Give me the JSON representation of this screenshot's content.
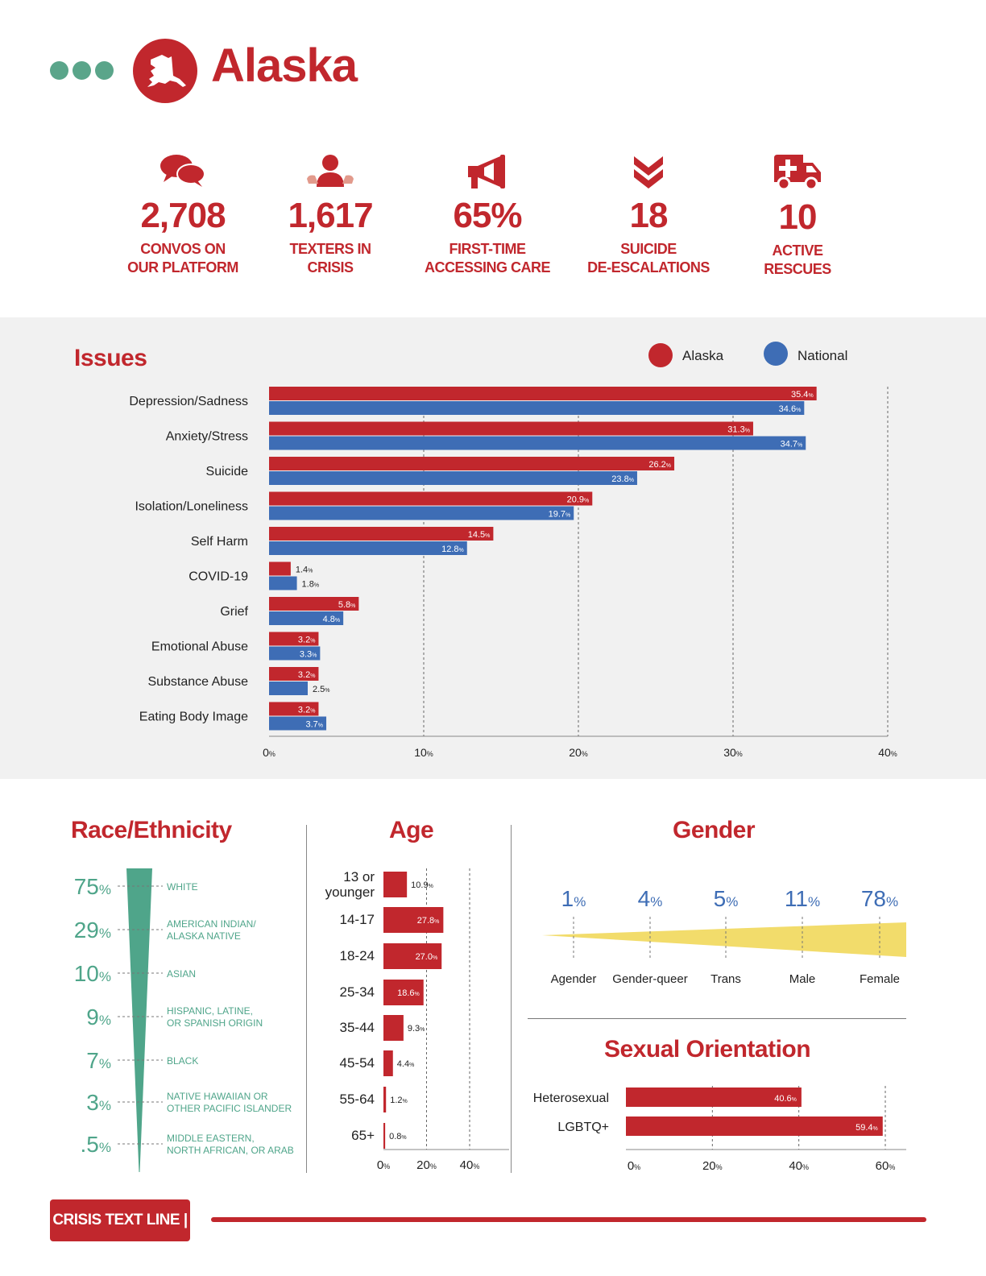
{
  "header": {
    "state": "Alaska"
  },
  "stats": [
    {
      "icon": "chat-bubbles-icon",
      "value": "2,708",
      "label_line1": "CONVOS ON",
      "label_line2": "OUR PLATFORM"
    },
    {
      "icon": "person-hands-icon",
      "value": "1,617",
      "label_line1": "TEXTERS IN",
      "label_line2": "CRISIS"
    },
    {
      "icon": "megaphone-icon",
      "value": "65%",
      "label_line1": "FIRST-TIME",
      "label_line2": "ACCESSING CARE"
    },
    {
      "icon": "double-chevron-down-icon",
      "value": "18",
      "label_line1": "SUICIDE",
      "label_line2": "DE-ESCALATIONS"
    },
    {
      "icon": "ambulance-icon",
      "value": "10",
      "label_line1": "ACTIVE",
      "label_line2": "RESCUES"
    }
  ],
  "colors": {
    "red": "#c1272d",
    "blue": "#3e6db5",
    "green": "#4fa58a",
    "yellow": "#f2dc6b",
    "gender_blue": "#3e6db5"
  },
  "legend": {
    "alaska": "Alaska",
    "national": "National"
  },
  "footer": {
    "logo": "CRISIS TEXT LINE |"
  },
  "chart_data": [
    {
      "type": "bar",
      "title": "Issues",
      "orientation": "horizontal",
      "categories": [
        "Depression/Sadness",
        "Anxiety/Stress",
        "Suicide",
        "Isolation/Loneliness",
        "Self Harm",
        "COVID-19",
        "Grief",
        "Emotional Abuse",
        "Substance Abuse",
        "Eating Body Image"
      ],
      "series": [
        {
          "name": "Alaska",
          "values": [
            35.4,
            31.3,
            26.2,
            20.9,
            14.5,
            1.4,
            5.8,
            3.2,
            3.2,
            3.2
          ]
        },
        {
          "name": "National",
          "values": [
            34.6,
            34.7,
            23.8,
            19.7,
            12.8,
            1.8,
            4.8,
            3.3,
            2.5,
            3.7
          ]
        }
      ],
      "xlim": [
        0,
        40
      ],
      "xticks": [
        0,
        10,
        20,
        30,
        40
      ],
      "unit": "%",
      "legend_position": "top-right"
    },
    {
      "type": "bar",
      "title": "Race/Ethnicity",
      "categories": [
        "WHITE",
        "AMERICAN INDIAN/ ALASKA NATIVE",
        "ASIAN",
        "HISPANIC, LATINE, OR SPANISH ORIGIN",
        "BLACK",
        "NATIVE HAWAIIAN OR OTHER PACIFIC ISLANDER",
        "MIDDLE EASTERN, NORTH AFRICAN, OR ARAB"
      ],
      "category_lines": [
        [
          "WHITE"
        ],
        [
          "AMERICAN INDIAN/",
          "ALASKA NATIVE"
        ],
        [
          "ASIAN"
        ],
        [
          "HISPANIC, LATINE,",
          "OR SPANISH ORIGIN"
        ],
        [
          "BLACK"
        ],
        [
          "NATIVE HAWAIIAN OR",
          "OTHER PACIFIC ISLANDER"
        ],
        [
          "MIDDLE EASTERN,",
          "NORTH AFRICAN, OR ARAB"
        ]
      ],
      "values": [
        75,
        29,
        10,
        9,
        7,
        3,
        0.5
      ],
      "value_labels": [
        "75",
        "29",
        "10",
        "9",
        "7",
        "3",
        ".5"
      ],
      "unit": "%"
    },
    {
      "type": "bar",
      "title": "Age",
      "orientation": "horizontal",
      "categories": [
        "13 or younger",
        "14-17",
        "18-24",
        "25-34",
        "35-44",
        "45-54",
        "55-64",
        "65+"
      ],
      "category_lines": [
        [
          "13 or",
          "younger"
        ],
        [
          "14-17"
        ],
        [
          "18-24"
        ],
        [
          "25-34"
        ],
        [
          "35-44"
        ],
        [
          "45-54"
        ],
        [
          "55-64"
        ],
        [
          "65+"
        ]
      ],
      "values": [
        10.9,
        27.8,
        27.0,
        18.6,
        9.3,
        4.4,
        1.2,
        0.8
      ],
      "xlim": [
        0,
        40
      ],
      "xticks": [
        0,
        20,
        40
      ],
      "unit": "%"
    },
    {
      "type": "area",
      "title": "Gender",
      "categories": [
        "Agender",
        "Gender-queer",
        "Trans",
        "Male",
        "Female"
      ],
      "values": [
        1,
        4,
        5,
        11,
        78
      ],
      "unit": "%"
    },
    {
      "type": "bar",
      "title": "Sexual Orientation",
      "orientation": "horizontal",
      "categories": [
        "Heterosexual",
        "LGBTQ+"
      ],
      "values": [
        40.6,
        59.4
      ],
      "xlim": [
        0,
        60
      ],
      "xticks": [
        0,
        20,
        40,
        60
      ],
      "unit": "%"
    }
  ]
}
